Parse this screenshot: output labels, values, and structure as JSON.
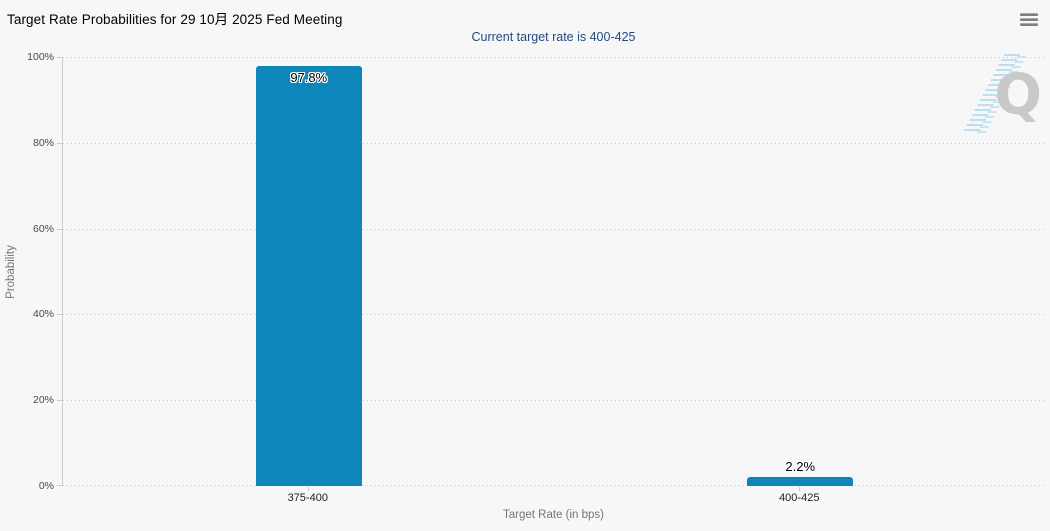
{
  "chart_data": {
    "type": "bar",
    "title": "Target Rate Probabilities for 29 10月 2025 Fed Meeting",
    "subtitle": "Current target rate is 400-425",
    "xlabel": "Target Rate (in bps)",
    "ylabel": "Probability",
    "categories": [
      "375-400",
      "400-425"
    ],
    "values": [
      97.8,
      2.2
    ],
    "value_labels": [
      "97.8%",
      "2.2%"
    ],
    "ylim": [
      0,
      100
    ],
    "ytick_values": [
      0,
      20,
      40,
      60,
      80,
      100
    ],
    "ytick_labels": [
      "0%",
      "20%",
      "40%",
      "60%",
      "80%",
      "100%"
    ],
    "legend": "none",
    "grid": "horizontal-dotted",
    "bar_color": "#0d86bb"
  },
  "menu": {
    "icon": "hamburger-menu-icon"
  },
  "watermark": {
    "letter": "Q"
  },
  "colors": {
    "background": "#f7f7f7",
    "bar": "#0d86bb",
    "subtitle_text": "#264a7d",
    "axis_line": "#cccccc",
    "gridline": "#c9c9c9",
    "ytick_text": "#3f4a5a",
    "xtick_text": "#222222",
    "axis_title_text": "#75757b",
    "title_text": "#000000",
    "value_label_text": "#000000",
    "value_label_halo": "#ffffff",
    "watermark_q": "#c9c9c9",
    "watermark_streak": "#bfe2f1",
    "menu_icon": "#7e7e7e"
  }
}
